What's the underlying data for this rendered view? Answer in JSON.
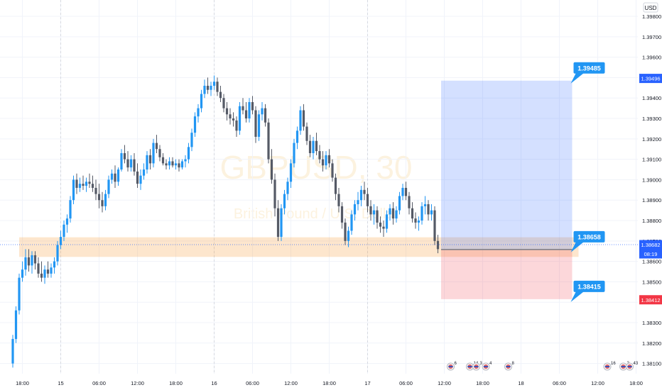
{
  "chart_data": {
    "type": "candlestick",
    "currency": "USD",
    "watermark": {
      "symbol": "GBPUSD, 30",
      "subtitle": "British Pound / U.S. Dollar"
    },
    "y_axis": {
      "ylim": [
        1.3805,
        1.3988
      ],
      "ticks": [
        "1.39800",
        "1.39700",
        "1.39600",
        "1.39500",
        "1.39400",
        "1.39300",
        "1.39200",
        "1.39100",
        "1.39000",
        "1.38900",
        "1.38800",
        "1.38700",
        "1.38600",
        "1.38500",
        "1.38400",
        "1.38300",
        "1.38200",
        "1.38100"
      ]
    },
    "x_axis": {
      "ticks": [
        {
          "label": "18:00",
          "bar": 3
        },
        {
          "label": "15",
          "bar": 15
        },
        {
          "label": "06:00",
          "bar": 27
        },
        {
          "label": "12:00",
          "bar": 39
        },
        {
          "label": "18:00",
          "bar": 51
        },
        {
          "label": "16",
          "bar": 63
        },
        {
          "label": "06:00",
          "bar": 75
        },
        {
          "label": "12:00",
          "bar": 87
        },
        {
          "label": "18:00",
          "bar": 99
        },
        {
          "label": "17",
          "bar": 111
        },
        {
          "label": "06:00",
          "bar": 123
        },
        {
          "label": "12:00",
          "bar": 135
        },
        {
          "label": "18:00",
          "bar": 147
        },
        {
          "label": "18",
          "bar": 159
        },
        {
          "label": "06:00",
          "bar": 171
        },
        {
          "label": "12:00",
          "bar": 183
        },
        {
          "label": "18:00",
          "bar": 195
        },
        {
          "label": "19",
          "bar": 207
        }
      ],
      "day_separators": [
        15,
        63,
        111
      ]
    },
    "current_price": "1.38682",
    "countdown": "08:19",
    "price_tags": [
      {
        "value": "1.39496",
        "price": 1.39496,
        "color": "#2962ff"
      },
      {
        "value": "1.38660",
        "price": 1.3866,
        "color": "#363a45"
      },
      {
        "value": "1.38412",
        "price": 1.38412,
        "color": "#f23645"
      }
    ],
    "position": {
      "entry": 1.38658,
      "target": 1.39485,
      "stop": 1.38415,
      "start_bar": 134,
      "end_bar": 175,
      "labels": [
        {
          "text": "1.39485",
          "price": 1.39485
        },
        {
          "text": "1.38658",
          "price": 1.38658
        },
        {
          "text": "1.38415",
          "price": 1.38415
        }
      ]
    },
    "zone": {
      "top": 1.38718,
      "bottom": 1.38622,
      "start_bar": 2,
      "end_bar": 177
    },
    "events": [
      {
        "bar": 137,
        "count": "6"
      },
      {
        "bar": 143,
        "count": "14"
      },
      {
        "bar": 145,
        "count": "3"
      },
      {
        "bar": 148,
        "count": "4"
      },
      {
        "bar": 155,
        "count": "8"
      },
      {
        "bar": 186,
        "count": "16"
      },
      {
        "bar": 191,
        "count": "2"
      },
      {
        "bar": 193,
        "count": "43"
      },
      {
        "bar": 207,
        "count": ""
      }
    ],
    "candles": [
      [
        1.381,
        1.3824,
        1.3808,
        1.3822
      ],
      [
        1.3822,
        1.3838,
        1.382,
        1.3836
      ],
      [
        1.3836,
        1.3854,
        1.3834,
        1.3852
      ],
      [
        1.3852,
        1.386,
        1.385,
        1.3856
      ],
      [
        1.3856,
        1.3866,
        1.3853,
        1.3862
      ],
      [
        1.3862,
        1.3866,
        1.3855,
        1.3858
      ],
      [
        1.3858,
        1.3865,
        1.3854,
        1.3863
      ],
      [
        1.3863,
        1.3865,
        1.3856,
        1.3859
      ],
      [
        1.3859,
        1.3862,
        1.3852,
        1.3854
      ],
      [
        1.3854,
        1.386,
        1.385,
        1.3852
      ],
      [
        1.3852,
        1.3858,
        1.3849,
        1.3856
      ],
      [
        1.3856,
        1.386,
        1.3852,
        1.3854
      ],
      [
        1.3854,
        1.3859,
        1.3852,
        1.3857
      ],
      [
        1.3857,
        1.3862,
        1.3854,
        1.386
      ],
      [
        1.386,
        1.387,
        1.3858,
        1.3868
      ],
      [
        1.3868,
        1.3875,
        1.3866,
        1.3872
      ],
      [
        1.3872,
        1.388,
        1.387,
        1.3878
      ],
      [
        1.3878,
        1.3883,
        1.3874,
        1.3881
      ],
      [
        1.3881,
        1.3892,
        1.3879,
        1.389
      ],
      [
        1.389,
        1.3902,
        1.3888,
        1.39
      ],
      [
        1.39,
        1.3903,
        1.3893,
        1.3896
      ],
      [
        1.3896,
        1.3901,
        1.3894,
        1.3898
      ],
      [
        1.3898,
        1.3902,
        1.3895,
        1.3897
      ],
      [
        1.3897,
        1.3901,
        1.3894,
        1.3899
      ],
      [
        1.3899,
        1.3903,
        1.3896,
        1.3898
      ],
      [
        1.3898,
        1.3902,
        1.3894,
        1.3896
      ],
      [
        1.3896,
        1.39,
        1.389,
        1.3893
      ],
      [
        1.3893,
        1.3898,
        1.3886,
        1.389
      ],
      [
        1.389,
        1.3894,
        1.3884,
        1.3887
      ],
      [
        1.3887,
        1.3895,
        1.3885,
        1.3893
      ],
      [
        1.3893,
        1.3902,
        1.3891,
        1.39
      ],
      [
        1.39,
        1.3905,
        1.3898,
        1.3903
      ],
      [
        1.3903,
        1.3907,
        1.3896,
        1.3899
      ],
      [
        1.3899,
        1.3906,
        1.3897,
        1.3905
      ],
      [
        1.3905,
        1.3915,
        1.3904,
        1.3913
      ],
      [
        1.3913,
        1.3917,
        1.3908,
        1.391
      ],
      [
        1.391,
        1.3914,
        1.3904,
        1.3906
      ],
      [
        1.3906,
        1.3912,
        1.3904,
        1.391
      ],
      [
        1.391,
        1.3913,
        1.3902,
        1.3904
      ],
      [
        1.3904,
        1.3908,
        1.3896,
        1.3898
      ],
      [
        1.3898,
        1.3905,
        1.3895,
        1.3902
      ],
      [
        1.3902,
        1.3908,
        1.39,
        1.3905
      ],
      [
        1.3905,
        1.3914,
        1.3903,
        1.3912
      ],
      [
        1.3912,
        1.3915,
        1.3905,
        1.3908
      ],
      [
        1.3908,
        1.392,
        1.3906,
        1.3918
      ],
      [
        1.3918,
        1.3922,
        1.3913,
        1.3915
      ],
      [
        1.3915,
        1.3917,
        1.3909,
        1.3911
      ],
      [
        1.3911,
        1.3913,
        1.3907,
        1.3908
      ],
      [
        1.3908,
        1.391,
        1.3905,
        1.3907
      ],
      [
        1.3907,
        1.3911,
        1.3905,
        1.3909
      ],
      [
        1.3909,
        1.3911,
        1.3906,
        1.3907
      ],
      [
        1.3907,
        1.391,
        1.3905,
        1.3908
      ],
      [
        1.3908,
        1.391,
        1.3904,
        1.3906
      ],
      [
        1.3906,
        1.391,
        1.3905,
        1.3909
      ],
      [
        1.3909,
        1.3912,
        1.3906,
        1.391
      ],
      [
        1.391,
        1.3918,
        1.3908,
        1.3916
      ],
      [
        1.3916,
        1.3925,
        1.3914,
        1.3923
      ],
      [
        1.3923,
        1.3933,
        1.3921,
        1.3931
      ],
      [
        1.3931,
        1.3937,
        1.3928,
        1.3935
      ],
      [
        1.3935,
        1.3944,
        1.3933,
        1.3942
      ],
      [
        1.3942,
        1.3949,
        1.394,
        1.3946
      ],
      [
        1.3946,
        1.395,
        1.3942,
        1.3944
      ],
      [
        1.3944,
        1.3948,
        1.3941,
        1.3946
      ],
      [
        1.3946,
        1.3951,
        1.3944,
        1.3948
      ],
      [
        1.3948,
        1.395,
        1.3941,
        1.3943
      ],
      [
        1.3943,
        1.3946,
        1.3938,
        1.394
      ],
      [
        1.394,
        1.3942,
        1.3933,
        1.3935
      ],
      [
        1.3935,
        1.3938,
        1.3929,
        1.3932
      ],
      [
        1.3932,
        1.3935,
        1.3927,
        1.393
      ],
      [
        1.393,
        1.3933,
        1.3926,
        1.3929
      ],
      [
        1.3929,
        1.3931,
        1.3921,
        1.3924
      ],
      [
        1.3924,
        1.3938,
        1.3922,
        1.3936
      ],
      [
        1.3936,
        1.394,
        1.3932,
        1.3934
      ],
      [
        1.3934,
        1.3938,
        1.3928,
        1.393
      ],
      [
        1.393,
        1.394,
        1.3928,
        1.3938
      ],
      [
        1.3938,
        1.3941,
        1.3932,
        1.3934
      ],
      [
        1.3934,
        1.3936,
        1.3918,
        1.3921
      ],
      [
        1.3921,
        1.3934,
        1.3919,
        1.3932
      ],
      [
        1.3932,
        1.3938,
        1.3929,
        1.3935
      ],
      [
        1.3935,
        1.3937,
        1.3926,
        1.3928
      ],
      [
        1.3928,
        1.393,
        1.3908,
        1.391
      ],
      [
        1.391,
        1.3915,
        1.3898,
        1.39
      ],
      [
        1.39,
        1.3903,
        1.3882,
        1.3886
      ],
      [
        1.3886,
        1.389,
        1.387,
        1.3872
      ],
      [
        1.3872,
        1.3888,
        1.387,
        1.3886
      ],
      [
        1.3886,
        1.3895,
        1.3883,
        1.3893
      ],
      [
        1.3893,
        1.3901,
        1.389,
        1.3899
      ],
      [
        1.3899,
        1.391,
        1.3896,
        1.3908
      ],
      [
        1.3908,
        1.392,
        1.3906,
        1.3918
      ],
      [
        1.3918,
        1.3926,
        1.3915,
        1.3924
      ],
      [
        1.3924,
        1.3936,
        1.3922,
        1.3934
      ],
      [
        1.3934,
        1.3937,
        1.3924,
        1.3926
      ],
      [
        1.3926,
        1.3928,
        1.3917,
        1.3919
      ],
      [
        1.3919,
        1.3922,
        1.3911,
        1.3913
      ],
      [
        1.3913,
        1.3921,
        1.391,
        1.3919
      ],
      [
        1.3919,
        1.3923,
        1.3912,
        1.3914
      ],
      [
        1.3914,
        1.3917,
        1.3908,
        1.391
      ],
      [
        1.391,
        1.3914,
        1.3904,
        1.3907
      ],
      [
        1.3907,
        1.3914,
        1.3905,
        1.3912
      ],
      [
        1.3912,
        1.3915,
        1.3906,
        1.3908
      ],
      [
        1.3908,
        1.391,
        1.3899,
        1.3901
      ],
      [
        1.3901,
        1.3903,
        1.389,
        1.3893
      ],
      [
        1.3893,
        1.3896,
        1.3884,
        1.3887
      ],
      [
        1.3887,
        1.3889,
        1.3876,
        1.3879
      ],
      [
        1.3879,
        1.3881,
        1.3868,
        1.387
      ],
      [
        1.387,
        1.3877,
        1.3867,
        1.3875
      ],
      [
        1.3875,
        1.3885,
        1.3873,
        1.3883
      ],
      [
        1.3883,
        1.389,
        1.388,
        1.3888
      ],
      [
        1.3888,
        1.3894,
        1.3885,
        1.389
      ],
      [
        1.389,
        1.3897,
        1.3887,
        1.3895
      ],
      [
        1.3895,
        1.3899,
        1.389,
        1.3893
      ],
      [
        1.3893,
        1.3896,
        1.3884,
        1.3887
      ],
      [
        1.3887,
        1.389,
        1.388,
        1.3883
      ],
      [
        1.3883,
        1.3888,
        1.3878,
        1.3885
      ],
      [
        1.3885,
        1.3887,
        1.3876,
        1.3879
      ],
      [
        1.3879,
        1.3882,
        1.3874,
        1.3877
      ],
      [
        1.3877,
        1.388,
        1.3872,
        1.3876
      ],
      [
        1.3876,
        1.3885,
        1.3874,
        1.3883
      ],
      [
        1.3883,
        1.3888,
        1.388,
        1.3886
      ],
      [
        1.3886,
        1.3889,
        1.3878,
        1.3881
      ],
      [
        1.3881,
        1.3887,
        1.3879,
        1.3885
      ],
      [
        1.3885,
        1.3894,
        1.3883,
        1.3892
      ],
      [
        1.3892,
        1.3898,
        1.389,
        1.3896
      ],
      [
        1.3896,
        1.3899,
        1.389,
        1.3892
      ],
      [
        1.3892,
        1.3894,
        1.3883,
        1.3886
      ],
      [
        1.3886,
        1.3889,
        1.3879,
        1.3881
      ],
      [
        1.3881,
        1.3884,
        1.3876,
        1.3879
      ],
      [
        1.3879,
        1.3882,
        1.3875,
        1.388
      ],
      [
        1.388,
        1.3889,
        1.3878,
        1.3887
      ],
      [
        1.3887,
        1.3892,
        1.3883,
        1.3888
      ],
      [
        1.3888,
        1.389,
        1.388,
        1.3883
      ],
      [
        1.3883,
        1.3888,
        1.388,
        1.3885
      ],
      [
        1.3885,
        1.3887,
        1.3868,
        1.387
      ],
      [
        1.387,
        1.3873,
        1.3864,
        1.3866
      ]
    ]
  }
}
